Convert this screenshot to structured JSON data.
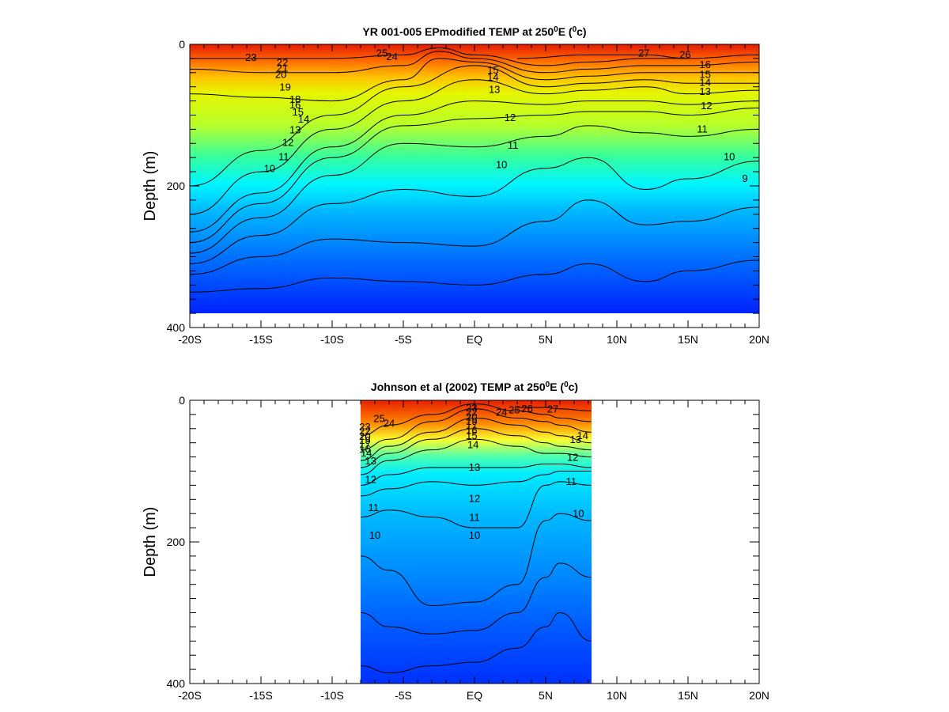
{
  "chart_data": [
    {
      "type": "contour",
      "title_parts": [
        "YR 001-005 EPmodified TEMP at 250",
        "0",
        "E (",
        "0",
        "c)"
      ],
      "xlabel": "",
      "ylabel": "Depth (m)",
      "xlim": [
        -20,
        20
      ],
      "ylim": [
        400,
        0
      ],
      "x_tick_labels": [
        "-20S",
        "-15S",
        "-10S",
        "-5S",
        "EQ",
        "5N",
        "10N",
        "15N",
        "20N"
      ],
      "x_tick_values": [
        -20,
        -15,
        -10,
        -5,
        0,
        5,
        10,
        15,
        20
      ],
      "y_tick_labels": [
        "0",
        "200",
        "400"
      ],
      "y_tick_values": [
        0,
        200,
        400
      ],
      "data_x_range": [
        -20,
        20
      ],
      "data_depth_max": 380,
      "contour_levels": [
        10,
        11,
        12,
        13,
        14,
        15,
        16,
        17,
        18,
        19,
        20,
        21,
        22,
        23,
        24,
        25,
        26,
        27
      ],
      "isotherm_depths": [
        {
          "level": 10,
          "x": [
            -20,
            -15,
            -10,
            -5,
            0,
            5,
            8,
            12,
            15,
            20
          ],
          "depth": [
            350,
            345,
            330,
            335,
            340,
            325,
            310,
            335,
            320,
            305
          ]
        },
        {
          "level": 11,
          "x": [
            -20,
            -15,
            -10,
            -5,
            0,
            5,
            8,
            12,
            15,
            20
          ],
          "depth": [
            325,
            300,
            275,
            280,
            285,
            250,
            220,
            255,
            250,
            230
          ]
        },
        {
          "level": 12,
          "x": [
            -20,
            -15,
            -10,
            -5,
            0,
            5,
            8,
            12,
            15,
            20
          ],
          "depth": [
            310,
            270,
            225,
            205,
            215,
            175,
            160,
            205,
            190,
            165
          ]
        },
        {
          "level": 13,
          "x": [
            -20,
            -15,
            -10,
            -5,
            0,
            5,
            8,
            12,
            15,
            20
          ],
          "depth": [
            295,
            245,
            185,
            140,
            145,
            130,
            115,
            125,
            130,
            120
          ]
        },
        {
          "level": 14,
          "x": [
            -20,
            -15,
            -10,
            -5,
            0,
            5,
            8,
            12,
            15,
            20
          ],
          "depth": [
            280,
            225,
            160,
            115,
            105,
            100,
            95,
            95,
            100,
            90
          ]
        },
        {
          "level": 15,
          "x": [
            -20,
            -15,
            -10,
            -5,
            0,
            5,
            8,
            12,
            15,
            20
          ],
          "depth": [
            265,
            210,
            145,
            100,
            80,
            85,
            80,
            80,
            85,
            80
          ]
        },
        {
          "level": 17,
          "x": [
            -20,
            -15,
            -10,
            -5,
            0,
            5,
            8,
            12,
            15,
            20
          ],
          "depth": [
            240,
            180,
            120,
            80,
            50,
            70,
            65,
            60,
            70,
            65
          ]
        },
        {
          "level": 19,
          "x": [
            -20,
            -15,
            -10,
            -5,
            0,
            5,
            8,
            12,
            15,
            20
          ],
          "depth": [
            200,
            150,
            100,
            60,
            30,
            60,
            55,
            50,
            55,
            55
          ]
        },
        {
          "level": 21,
          "x": [
            -20,
            -15,
            -10,
            -5,
            -2.5,
            0,
            5,
            8,
            12,
            15,
            20
          ],
          "depth": [
            70,
            75,
            80,
            50,
            20,
            25,
            50,
            45,
            40,
            40,
            40
          ]
        },
        {
          "level": 23,
          "x": [
            -20,
            -15,
            -10,
            -5,
            -2.5,
            0,
            5,
            8,
            12,
            15,
            20
          ],
          "depth": [
            35,
            40,
            40,
            30,
            10,
            20,
            40,
            35,
            30,
            30,
            25
          ]
        },
        {
          "level": 25,
          "x": [
            -20,
            -15,
            -10,
            -5,
            -2.5,
            0,
            5,
            8,
            12,
            15,
            20
          ],
          "depth": [
            20,
            20,
            20,
            15,
            5,
            15,
            30,
            25,
            20,
            20,
            15
          ]
        },
        {
          "level": 27,
          "x": [
            3,
            8,
            12,
            15
          ],
          "depth": [
            20,
            15,
            15,
            20
          ]
        }
      ],
      "contour_labels": [
        {
          "text": "23",
          "x": -15.7,
          "depth": 18
        },
        {
          "text": "25",
          "x": -6.5,
          "depth": 12
        },
        {
          "text": "24",
          "x": -5.8,
          "depth": 17
        },
        {
          "text": "22",
          "x": -13.5,
          "depth": 25
        },
        {
          "text": "21",
          "x": -13.5,
          "depth": 33
        },
        {
          "text": "20",
          "x": -13.6,
          "depth": 42
        },
        {
          "text": "19",
          "x": -13.3,
          "depth": 60
        },
        {
          "text": "18",
          "x": -12.6,
          "depth": 77
        },
        {
          "text": "16",
          "x": -12.6,
          "depth": 85
        },
        {
          "text": "15",
          "x": -12.4,
          "depth": 95
        },
        {
          "text": "14",
          "x": -12.0,
          "depth": 105
        },
        {
          "text": "13",
          "x": -12.6,
          "depth": 120
        },
        {
          "text": "12",
          "x": -13.1,
          "depth": 138
        },
        {
          "text": "11",
          "x": -13.4,
          "depth": 158
        },
        {
          "text": "10",
          "x": -14.4,
          "depth": 175
        },
        {
          "text": "15",
          "x": 1.3,
          "depth": 36
        },
        {
          "text": "14",
          "x": 1.3,
          "depth": 46
        },
        {
          "text": "13",
          "x": 1.4,
          "depth": 63
        },
        {
          "text": "12",
          "x": 2.5,
          "depth": 103
        },
        {
          "text": "11",
          "x": 2.7,
          "depth": 142
        },
        {
          "text": "10",
          "x": 1.9,
          "depth": 169
        },
        {
          "text": "27",
          "x": 11.9,
          "depth": 12
        },
        {
          "text": "26",
          "x": 14.8,
          "depth": 14
        },
        {
          "text": "16",
          "x": 16.2,
          "depth": 28
        },
        {
          "text": "15",
          "x": 16.2,
          "depth": 42
        },
        {
          "text": "14",
          "x": 16.2,
          "depth": 53
        },
        {
          "text": "13",
          "x": 16.2,
          "depth": 66
        },
        {
          "text": "12",
          "x": 16.3,
          "depth": 86
        },
        {
          "text": "11",
          "x": 16.0,
          "depth": 119
        },
        {
          "text": "10",
          "x": 17.9,
          "depth": 158
        },
        {
          "text": "9",
          "x": 19.0,
          "depth": 189
        }
      ]
    },
    {
      "type": "contour",
      "title_parts": [
        "Johnson et al (2002) TEMP at 250",
        "0",
        "E (",
        "0",
        "c)"
      ],
      "xlabel": "",
      "ylabel": "Depth (m)",
      "xlim": [
        -20,
        20
      ],
      "ylim": [
        400,
        0
      ],
      "x_tick_labels": [
        "-20S",
        "-15S",
        "-10S",
        "-5S",
        "EQ",
        "5N",
        "10N",
        "15N",
        "20N"
      ],
      "x_tick_values": [
        -20,
        -15,
        -10,
        -5,
        0,
        5,
        10,
        15,
        20
      ],
      "y_tick_labels": [
        "0",
        "200",
        "400"
      ],
      "y_tick_values": [
        0,
        200,
        400
      ],
      "data_x_range": [
        -8,
        8.2
      ],
      "data_depth_max": 400,
      "contour_levels": [
        10,
        11,
        12,
        13,
        14,
        15,
        16,
        17,
        18,
        19,
        20,
        21,
        22,
        23,
        24,
        25,
        26,
        27
      ],
      "isotherm_depths": [
        {
          "level": 10,
          "x": [
            -8,
            -6,
            -3,
            0,
            3,
            5,
            6,
            8.2
          ],
          "depth": [
            375,
            385,
            375,
            370,
            350,
            320,
            300,
            340
          ]
        },
        {
          "level": 11,
          "x": [
            -8,
            -6,
            -3,
            0,
            3,
            5,
            6,
            8.2
          ],
          "depth": [
            300,
            320,
            330,
            325,
            300,
            250,
            230,
            250
          ]
        },
        {
          "level": 12,
          "x": [
            -8,
            -6,
            -3,
            0,
            3,
            5,
            6,
            8.2
          ],
          "depth": [
            220,
            240,
            290,
            285,
            260,
            170,
            160,
            170
          ]
        },
        {
          "level": 13,
          "x": [
            -8,
            -6,
            -3,
            0,
            3,
            5,
            6,
            8.2
          ],
          "depth": [
            165,
            155,
            165,
            180,
            180,
            120,
            115,
            120
          ]
        },
        {
          "level": 14,
          "x": [
            -8,
            -6,
            -3,
            0,
            3,
            5,
            6,
            8.2
          ],
          "depth": [
            135,
            125,
            115,
            120,
            115,
            105,
            100,
            100
          ]
        },
        {
          "level": 15,
          "x": [
            -8,
            -6,
            -3,
            0,
            3,
            5,
            6,
            8.2
          ],
          "depth": [
            120,
            105,
            95,
            95,
            95,
            90,
            90,
            95
          ]
        },
        {
          "level": 17,
          "x": [
            -8,
            -6,
            -3,
            0,
            3,
            5,
            6,
            8.2
          ],
          "depth": [
            105,
            85,
            70,
            55,
            65,
            75,
            75,
            80
          ]
        },
        {
          "level": 19,
          "x": [
            -8,
            -6,
            -3,
            0,
            3,
            5,
            6,
            8.2
          ],
          "depth": [
            95,
            75,
            55,
            40,
            50,
            60,
            65,
            70
          ]
        },
        {
          "level": 21,
          "x": [
            -8,
            -6,
            -3,
            0,
            3,
            5,
            6,
            8.2
          ],
          "depth": [
            85,
            65,
            45,
            25,
            35,
            45,
            50,
            60
          ]
        },
        {
          "level": 23,
          "x": [
            -8,
            -6,
            -3,
            0,
            3,
            5,
            6,
            8.2
          ],
          "depth": [
            70,
            55,
            30,
            12,
            25,
            30,
            35,
            45
          ]
        },
        {
          "level": 25,
          "x": [
            -8,
            -6,
            -3,
            0,
            3,
            5,
            6,
            8.2
          ],
          "depth": [
            50,
            35,
            20,
            5,
            15,
            20,
            25,
            30
          ]
        },
        {
          "level": 27,
          "x": [
            3,
            5,
            6,
            8.2
          ],
          "depth": [
            10,
            10,
            12,
            15
          ]
        }
      ],
      "contour_labels": [
        {
          "text": "25",
          "x": -6.7,
          "depth": 25
        },
        {
          "text": "24",
          "x": -6.0,
          "depth": 32
        },
        {
          "text": "23",
          "x": -7.7,
          "depth": 37
        },
        {
          "text": "22",
          "x": -7.7,
          "depth": 43
        },
        {
          "text": "20",
          "x": -7.7,
          "depth": 50
        },
        {
          "text": "19",
          "x": -7.7,
          "depth": 56
        },
        {
          "text": "17",
          "x": -7.7,
          "depth": 62
        },
        {
          "text": "16",
          "x": -7.7,
          "depth": 68
        },
        {
          "text": "14",
          "x": -7.6,
          "depth": 74
        },
        {
          "text": "13",
          "x": -7.3,
          "depth": 85
        },
        {
          "text": "12",
          "x": -7.3,
          "depth": 111
        },
        {
          "text": "11",
          "x": -7.1,
          "depth": 151
        },
        {
          "text": "10",
          "x": -7.0,
          "depth": 190
        },
        {
          "text": "23",
          "x": -0.2,
          "depth": 10
        },
        {
          "text": "22",
          "x": -0.2,
          "depth": 16
        },
        {
          "text": "20",
          "x": -0.2,
          "depth": 23
        },
        {
          "text": "19",
          "x": -0.2,
          "depth": 29
        },
        {
          "text": "17",
          "x": -0.2,
          "depth": 35
        },
        {
          "text": "16",
          "x": -0.2,
          "depth": 42
        },
        {
          "text": "15",
          "x": -0.2,
          "depth": 49
        },
        {
          "text": "14",
          "x": -0.1,
          "depth": 62
        },
        {
          "text": "13",
          "x": 0.0,
          "depth": 94
        },
        {
          "text": "12",
          "x": 0.0,
          "depth": 138
        },
        {
          "text": "11",
          "x": 0.0,
          "depth": 165
        },
        {
          "text": "10",
          "x": 0.0,
          "depth": 190
        },
        {
          "text": "24",
          "x": 1.9,
          "depth": 16
        },
        {
          "text": "25",
          "x": 2.8,
          "depth": 13
        },
        {
          "text": "26",
          "x": 3.7,
          "depth": 11
        },
        {
          "text": "27",
          "x": 5.5,
          "depth": 12
        },
        {
          "text": "13",
          "x": 7.1,
          "depth": 55
        },
        {
          "text": "14",
          "x": 7.6,
          "depth": 49
        },
        {
          "text": "12",
          "x": 6.9,
          "depth": 80
        },
        {
          "text": "11",
          "x": 6.8,
          "depth": 114
        },
        {
          "text": "10",
          "x": 7.3,
          "depth": 159
        }
      ]
    }
  ]
}
